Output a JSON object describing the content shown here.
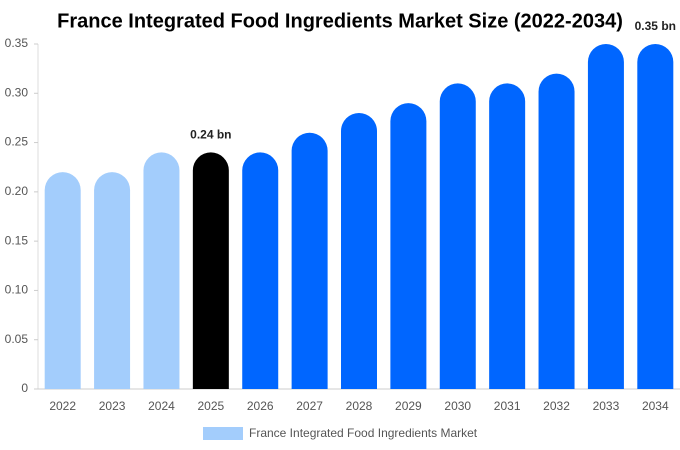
{
  "chart_data": {
    "type": "bar",
    "title": "France Integrated Food Ingredients Market Size (2022-2034)",
    "categories": [
      "2022",
      "2023",
      "2024",
      "2025",
      "2026",
      "2027",
      "2028",
      "2029",
      "2030",
      "2031",
      "2032",
      "2033",
      "2034"
    ],
    "series": [
      {
        "name": "France Integrated Food Ingredients Market",
        "color": "#a3cdfc",
        "colors": [
          "#a3cdfc",
          "#a3cdfc",
          "#a3cdfc",
          "#000000",
          "#0066ff",
          "#0066ff",
          "#0066ff",
          "#0066ff",
          "#0066ff",
          "#0066ff",
          "#0066ff",
          "#0066ff",
          "#0066ff"
        ],
        "values": [
          0.22,
          0.22,
          0.24,
          0.24,
          0.24,
          0.26,
          0.28,
          0.29,
          0.31,
          0.31,
          0.32,
          0.35,
          0.35
        ],
        "value_labels": [
          null,
          null,
          null,
          "0.24 bn",
          null,
          null,
          null,
          null,
          null,
          null,
          null,
          null,
          "0.35 bn"
        ]
      }
    ],
    "ylim": [
      0,
      0.35
    ],
    "yticks": [
      0,
      0.05,
      {
        "value": 0.1,
        "label": "0.10"
      },
      0.15,
      {
        "value": 0.2,
        "label": "0.20"
      },
      0.25,
      {
        "value": 0.3,
        "label": "0.30"
      },
      0.35
    ],
    "grid": false
  }
}
